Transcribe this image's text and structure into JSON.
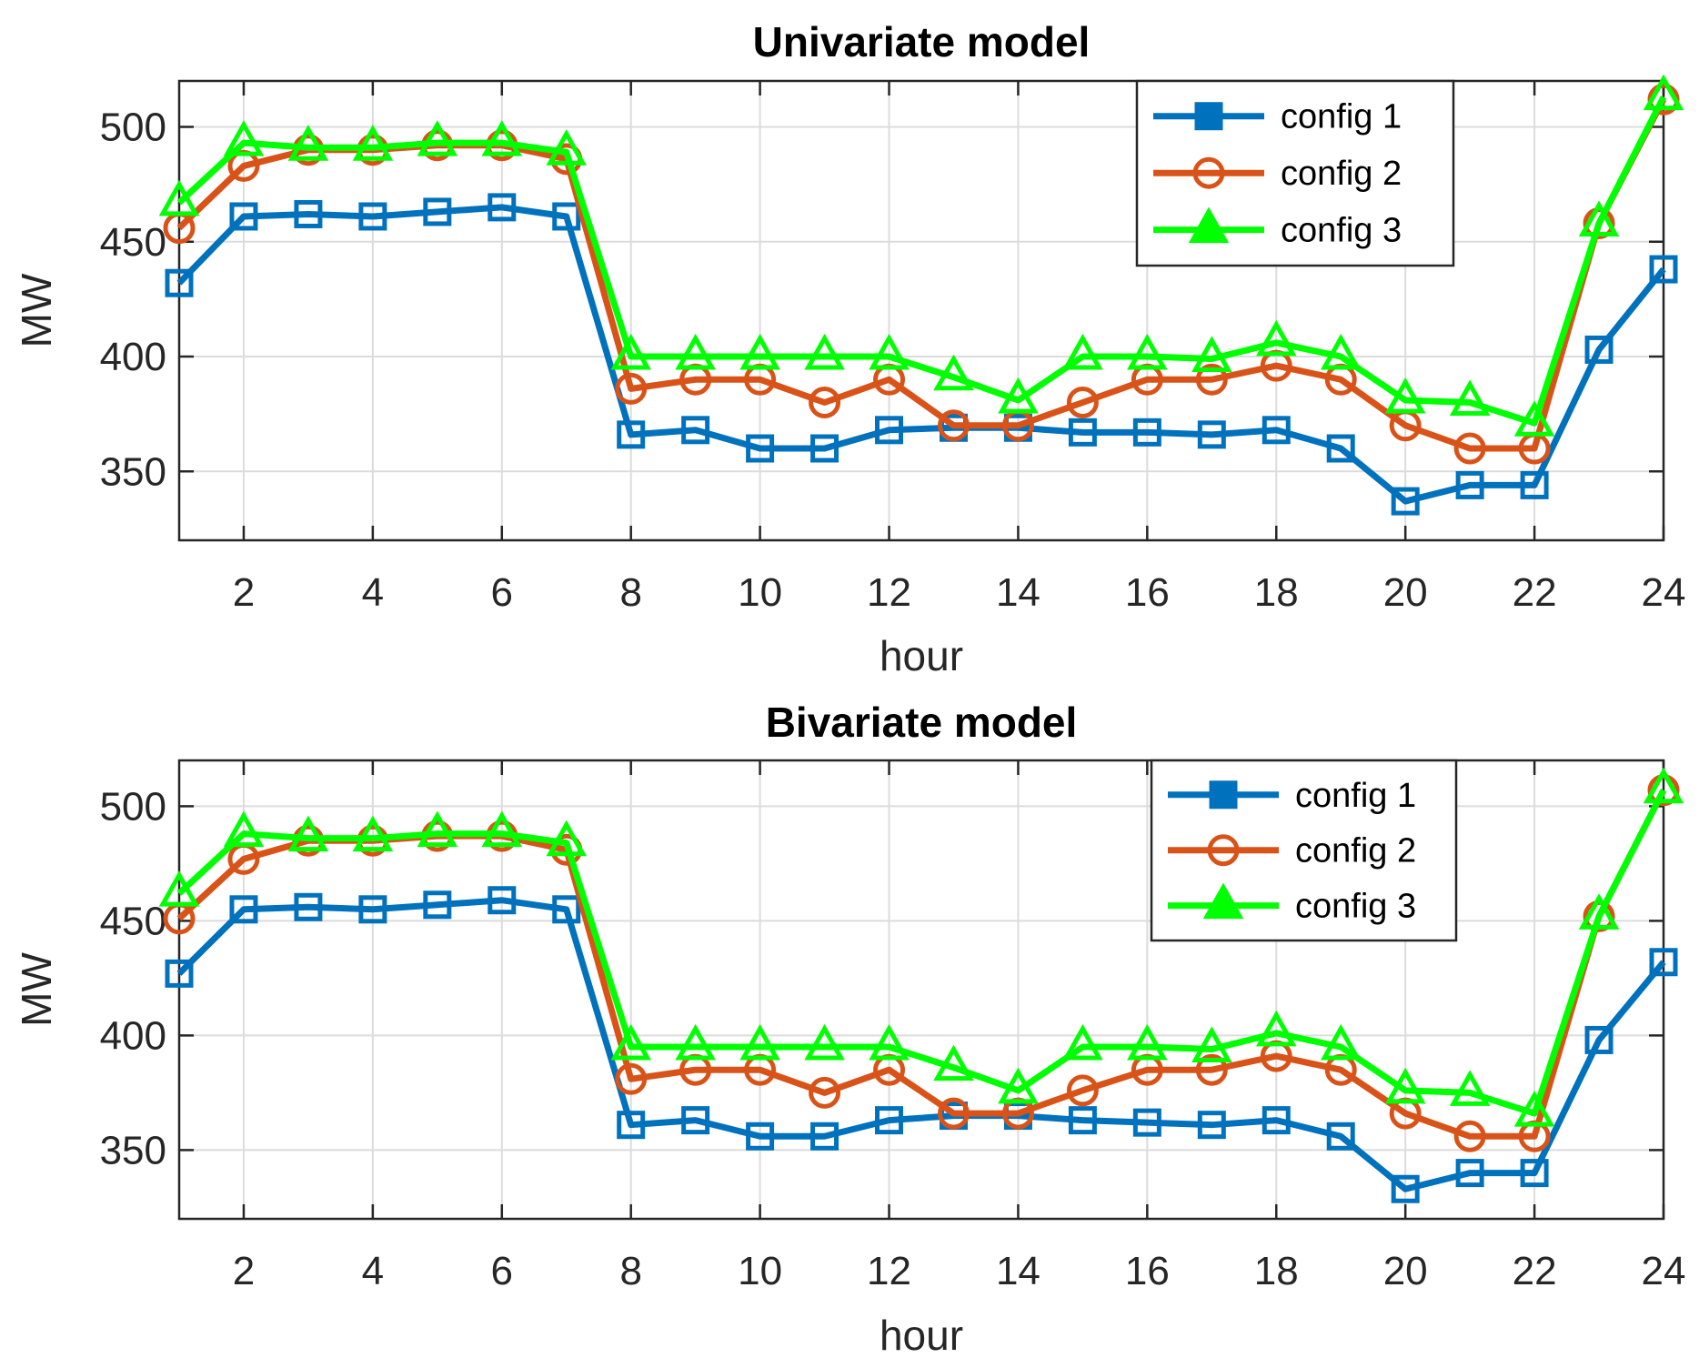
{
  "chart_data": [
    {
      "type": "line",
      "title": "Univariate model",
      "xlabel": "hour",
      "ylabel": "MW",
      "xlim": [
        1,
        24
      ],
      "ylim": [
        320,
        520
      ],
      "xticks": [
        2,
        4,
        6,
        8,
        10,
        12,
        14,
        16,
        18,
        20,
        22,
        24
      ],
      "yticks": [
        350,
        400,
        450,
        500
      ],
      "grid": true,
      "legend_position": "top-right",
      "x": [
        1,
        2,
        3,
        4,
        5,
        6,
        7,
        8,
        9,
        10,
        11,
        12,
        13,
        14,
        15,
        16,
        17,
        18,
        19,
        20,
        21,
        22,
        23,
        24
      ],
      "series": [
        {
          "name": "config 1",
          "color": "#0072BD",
          "marker": "square",
          "values": [
            432,
            461,
            462,
            461,
            463,
            465,
            461,
            366,
            368,
            360,
            360,
            368,
            369,
            369,
            367,
            367,
            366,
            368,
            360,
            337,
            344,
            344,
            403,
            438
          ]
        },
        {
          "name": "config 2",
          "color": "#D95319",
          "marker": "circle",
          "values": [
            456,
            483,
            490,
            490,
            492,
            492,
            486,
            386,
            390,
            390,
            380,
            390,
            370,
            370,
            380,
            390,
            390,
            396,
            390,
            370,
            360,
            360,
            458,
            512
          ]
        },
        {
          "name": "config 3",
          "color": "#00FF00",
          "marker": "triangle",
          "values": [
            467,
            493,
            491,
            491,
            493,
            493,
            489,
            400,
            400,
            400,
            400,
            400,
            391,
            381,
            400,
            400,
            399,
            406,
            400,
            381,
            380,
            371,
            458,
            513
          ]
        }
      ]
    },
    {
      "type": "line",
      "title": "Bivariate model",
      "xlabel": "hour",
      "ylabel": "MW",
      "xlim": [
        1,
        24
      ],
      "ylim": [
        320,
        520
      ],
      "xticks": [
        2,
        4,
        6,
        8,
        10,
        12,
        14,
        16,
        18,
        20,
        22,
        24
      ],
      "yticks": [
        350,
        400,
        450,
        500
      ],
      "grid": true,
      "legend_position": "top-right",
      "x": [
        1,
        2,
        3,
        4,
        5,
        6,
        7,
        8,
        9,
        10,
        11,
        12,
        13,
        14,
        15,
        16,
        17,
        18,
        19,
        20,
        21,
        22,
        23,
        24
      ],
      "series": [
        {
          "name": "config 1",
          "color": "#0072BD",
          "marker": "square",
          "values": [
            427,
            455,
            456,
            455,
            457,
            459,
            455,
            361,
            363,
            356,
            356,
            363,
            365,
            365,
            363,
            362,
            361,
            363,
            356,
            333,
            340,
            340,
            398,
            432
          ]
        },
        {
          "name": "config 2",
          "color": "#D95319",
          "marker": "circle",
          "values": [
            451,
            477,
            485,
            485,
            487,
            487,
            481,
            381,
            385,
            385,
            375,
            385,
            366,
            366,
            376,
            385,
            385,
            391,
            385,
            366,
            356,
            356,
            452,
            507
          ]
        },
        {
          "name": "config 3",
          "color": "#00FF00",
          "marker": "triangle",
          "values": [
            462,
            488,
            486,
            486,
            488,
            488,
            484,
            395,
            395,
            395,
            395,
            395,
            386,
            376,
            395,
            395,
            394,
            401,
            395,
            376,
            375,
            366,
            452,
            507
          ]
        }
      ]
    }
  ]
}
